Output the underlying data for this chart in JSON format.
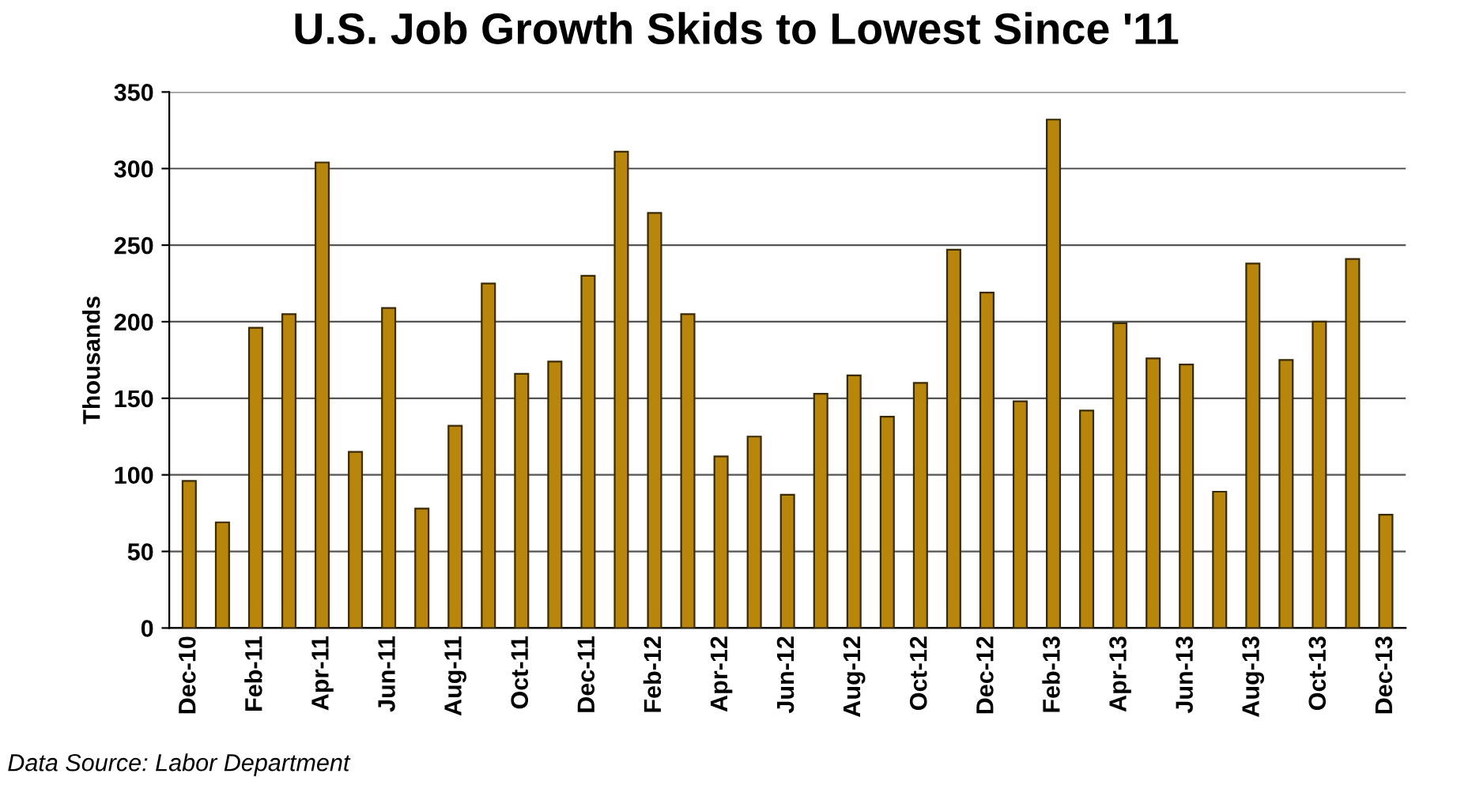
{
  "chart_data": {
    "type": "bar",
    "title": "U.S. Job Growth Skids to Lowest Since '11",
    "ylabel": "Thousands",
    "categories": [
      "Dec-10",
      null,
      "Feb-11",
      null,
      "Apr-11",
      null,
      "Jun-11",
      null,
      "Aug-11",
      null,
      "Oct-11",
      null,
      "Dec-11",
      null,
      "Feb-12",
      null,
      "Apr-12",
      null,
      "Jun-12",
      null,
      "Aug-12",
      null,
      "Oct-12",
      null,
      "Dec-12",
      null,
      "Feb-13",
      null,
      "Apr-13",
      null,
      "Jun-13",
      null,
      "Aug-13",
      null,
      "Oct-13",
      null,
      "Dec-13"
    ],
    "values": [
      96,
      69,
      196,
      205,
      304,
      115,
      209,
      78,
      132,
      225,
      166,
      174,
      230,
      311,
      271,
      205,
      112,
      125,
      87,
      153,
      165,
      138,
      160,
      247,
      219,
      148,
      332,
      142,
      199,
      176,
      172,
      89,
      238,
      175,
      200,
      241,
      74
    ],
    "color": "#b8860b",
    "ylim": [
      0,
      350
    ],
    "yticks": [
      0,
      50,
      100,
      150,
      200,
      250,
      300,
      350
    ],
    "grid": "y",
    "annotations": [
      "Data Source: Labor Department"
    ]
  }
}
